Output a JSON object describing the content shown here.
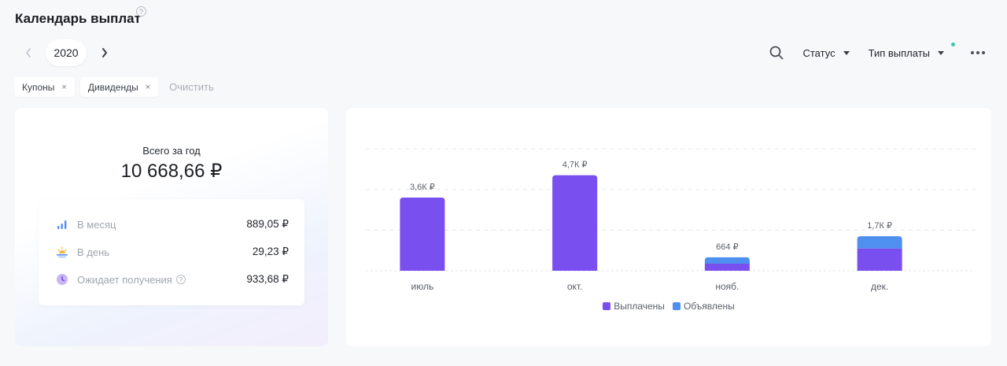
{
  "header": {
    "title": "Календарь выплат",
    "help_icon": "question-circle-icon"
  },
  "year_nav": {
    "year": "2020",
    "prev_icon": "chevron-left-icon",
    "next_icon": "chevron-right-icon"
  },
  "toolbar": {
    "search_icon": "search-icon",
    "status_label": "Статус",
    "payout_type_label": "Тип выплаты",
    "more_icon": "more-horizontal-icon"
  },
  "filters": {
    "chips": [
      {
        "label": "Купоны"
      },
      {
        "label": "Дивиденды"
      }
    ],
    "remove_glyph": "×",
    "clear_label": "Очистить"
  },
  "summary": {
    "total_label": "Всего за год",
    "total_value": "10 668,66 ₽",
    "stats": [
      {
        "icon": "bar-chart-icon",
        "label": "В месяц",
        "value": "889,05 ₽"
      },
      {
        "icon": "sunrise-icon",
        "label": "В день",
        "value": "29,23 ₽"
      },
      {
        "icon": "clock-icon",
        "label": "Ожидает получения",
        "value": "933,68 ₽",
        "help": true
      }
    ]
  },
  "colors": {
    "paid": "#7a4ff0",
    "announced": "#4f8ff0",
    "teal_badge": "#3cc7a8"
  },
  "chart_data": {
    "type": "bar",
    "stacked": true,
    "categories": [
      "июль",
      "окт.",
      "нояб.",
      "дек."
    ],
    "series": [
      {
        "name": "Выплачены",
        "values": [
          3600,
          4700,
          350,
          1100
        ]
      },
      {
        "name": "Объявлены",
        "values": [
          0,
          0,
          314,
          600
        ]
      }
    ],
    "data_labels": [
      "3,6К ₽",
      "4,7К ₽",
      "664 ₽",
      "1,7К ₽"
    ],
    "ylim": [
      0,
      6000
    ],
    "grid": true,
    "legend": "bottom"
  }
}
